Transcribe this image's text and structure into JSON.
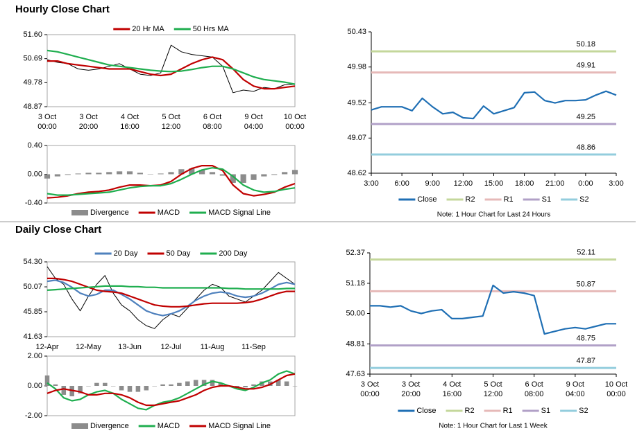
{
  "sections": [
    "Hourly Close Chart",
    "Daily Close Chart"
  ],
  "chart_data": [
    {
      "type": "line",
      "frame": true,
      "legend": "top",
      "categories": [
        [
          "3 Oct",
          "00:00"
        ],
        null,
        null,
        null,
        [
          "3 Oct",
          "20:00"
        ],
        null,
        null,
        null,
        [
          "4 Oct",
          "16:00"
        ],
        null,
        null,
        null,
        [
          "5 Oct",
          "12:00"
        ],
        null,
        null,
        null,
        [
          "6 Oct",
          "08:00"
        ],
        null,
        null,
        null,
        [
          "9 Oct",
          "04:00"
        ],
        null,
        null,
        null,
        [
          "10 Oct",
          "00:00"
        ]
      ],
      "ylim": [
        48.87,
        51.6
      ],
      "yticks": [
        48.87,
        49.78,
        50.69,
        {
          "value": 51.6,
          "label": "51.60"
        }
      ],
      "series": [
        {
          "color": "#000000",
          "values": [
            50.65,
            50.55,
            50.5,
            50.3,
            50.25,
            50.3,
            50.4,
            50.5,
            50.3,
            50.1,
            50.05,
            50.15,
            51.2,
            50.95,
            50.85,
            50.8,
            50.75,
            50.4,
            49.4,
            49.5,
            49.45,
            49.6,
            49.55,
            49.7,
            49.72
          ]
        },
        {
          "name": "20 Hr MA",
          "color": "#c00000",
          "values": [
            50.6,
            50.6,
            50.5,
            50.45,
            50.4,
            50.35,
            50.3,
            50.3,
            50.3,
            50.2,
            50.1,
            50.05,
            50.1,
            50.3,
            50.5,
            50.65,
            50.75,
            50.65,
            50.3,
            49.9,
            49.65,
            49.55,
            49.55,
            49.6,
            49.65
          ]
        },
        {
          "name": "50 Hrs MA",
          "color": "#1fae4f",
          "values": [
            51.0,
            50.95,
            50.85,
            50.75,
            50.65,
            50.55,
            50.45,
            50.4,
            50.35,
            50.3,
            50.25,
            50.22,
            50.2,
            50.22,
            50.28,
            50.35,
            50.4,
            50.4,
            50.3,
            50.15,
            50.0,
            49.9,
            49.85,
            49.8,
            49.72
          ]
        }
      ]
    },
    {
      "type": "combo",
      "frame": true,
      "legend": "bottom",
      "ylim": [
        -0.4,
        0.4
      ],
      "yticks": [
        {
          "value": -0.4,
          "label": "-0.40"
        },
        {
          "value": 0,
          "label": "0.00"
        },
        {
          "value": 0.4,
          "label": "0.40"
        }
      ],
      "series": [
        {
          "name": "Divergence",
          "mark": "bar",
          "color": "#8c8c8c",
          "values": [
            -0.06,
            -0.03,
            -0.01,
            0.01,
            0.02,
            0.02,
            0.03,
            0.04,
            0.04,
            0.02,
            0,
            0.01,
            0.03,
            0.07,
            0.08,
            0.06,
            0.03,
            -0.02,
            -0.12,
            -0.12,
            -0.08,
            -0.03,
            -0.01,
            0.03,
            0.06
          ]
        },
        {
          "name": "MACD",
          "mark": "line",
          "color": "#c00000",
          "values": [
            -0.33,
            -0.32,
            -0.3,
            -0.27,
            -0.25,
            -0.24,
            -0.22,
            -0.18,
            -0.15,
            -0.15,
            -0.16,
            -0.15,
            -0.1,
            0.0,
            0.08,
            0.12,
            0.12,
            0.05,
            -0.15,
            -0.27,
            -0.3,
            -0.28,
            -0.25,
            -0.18,
            -0.13
          ]
        },
        {
          "name": "MACD Signal Line",
          "mark": "line",
          "color": "#1fae4f",
          "values": [
            -0.27,
            -0.29,
            -0.29,
            -0.28,
            -0.27,
            -0.26,
            -0.25,
            -0.22,
            -0.19,
            -0.17,
            -0.16,
            -0.16,
            -0.13,
            -0.07,
            0.0,
            0.06,
            0.09,
            0.07,
            -0.03,
            -0.15,
            -0.22,
            -0.25,
            -0.24,
            -0.21,
            -0.19
          ]
        }
      ]
    },
    {
      "type": "line",
      "frame": false,
      "legend": "bottom",
      "note": "Note: 1 Hour Chart for Last 24 Hours",
      "categories": [
        "3:00",
        null,
        null,
        "6:00",
        null,
        null,
        "9:00",
        null,
        null,
        "12:00",
        null,
        null,
        "15:00",
        null,
        null,
        "18:00",
        null,
        null,
        "21:00",
        null,
        null,
        "0:00",
        null,
        null,
        "3:00"
      ],
      "ylim": [
        48.62,
        50.43
      ],
      "yticks": [
        48.62,
        49.07,
        49.52,
        49.98,
        50.43
      ],
      "series": [
        {
          "name": "Close",
          "color": "#1f6fb4",
          "values": [
            49.43,
            49.47,
            49.47,
            49.47,
            49.42,
            49.58,
            49.47,
            49.38,
            49.4,
            49.33,
            49.32,
            49.48,
            49.38,
            49.42,
            49.46,
            49.65,
            49.66,
            49.55,
            49.52,
            49.55,
            49.55,
            49.56,
            49.62,
            49.67,
            49.62
          ]
        }
      ],
      "levels": [
        {
          "name": "R2",
          "color": "#c4d79b",
          "value": 50.18
        },
        {
          "name": "R1",
          "color": "#e6b9b8",
          "value": 49.91
        },
        {
          "name": "S1",
          "color": "#b1a0c7",
          "value": 49.25
        },
        {
          "name": "S2",
          "color": "#93cddd",
          "value": 48.86
        }
      ]
    },
    {
      "type": "line",
      "frame": true,
      "legend": "top",
      "categories": [
        "12-Apr",
        null,
        null,
        null,
        null,
        "12-May",
        null,
        null,
        null,
        null,
        "13-Jun",
        null,
        null,
        null,
        null,
        "12-Jul",
        null,
        null,
        null,
        null,
        "11-Aug",
        null,
        null,
        null,
        null,
        "11-Sep",
        null,
        null,
        null,
        null,
        null
      ],
      "ylim": [
        41.63,
        54.3
      ],
      "yticks": [
        41.63,
        45.85,
        50.07,
        {
          "value": 54.3,
          "label": "54.30"
        }
      ],
      "series": [
        {
          "color": "#000000",
          "values": [
            53.5,
            51.5,
            50.5,
            48,
            46,
            48.5,
            50.5,
            52,
            49,
            47,
            46,
            44.5,
            43.5,
            43,
            44.5,
            45.5,
            45,
            46.5,
            48,
            49.5,
            50.5,
            50,
            48.5,
            48,
            47.5,
            48.5,
            49.5,
            51,
            52.5,
            51.5,
            50.5
          ]
        },
        {
          "name": "20 Day",
          "color": "#4f81bd",
          "values": [
            51,
            51.2,
            50.8,
            50,
            49,
            48.5,
            48.8,
            49.5,
            49.5,
            48.8,
            48,
            47,
            46,
            45.5,
            45.2,
            45.5,
            46,
            46.8,
            47.8,
            48.5,
            49,
            49.2,
            49,
            48.5,
            48.3,
            48.5,
            49,
            49.7,
            50.5,
            50.8,
            50.5
          ]
        },
        {
          "name": "50 Day",
          "color": "#c00000",
          "values": [
            51.5,
            51.5,
            51.3,
            51,
            50.5,
            50,
            49.5,
            49.3,
            49.2,
            49,
            48.5,
            48,
            47.5,
            47,
            46.8,
            46.7,
            46.7,
            46.8,
            47,
            47.2,
            47.3,
            47.3,
            47.3,
            47.3,
            47.4,
            47.6,
            48,
            48.5,
            49,
            49.3,
            49.3
          ]
        },
        {
          "name": "200 Day",
          "color": "#1fae4f",
          "values": [
            49.5,
            49.6,
            49.7,
            49.8,
            49.9,
            50,
            50.1,
            50.2,
            50.2,
            50.2,
            50.1,
            50.1,
            50,
            50,
            49.9,
            49.9,
            49.9,
            49.9,
            49.9,
            49.9,
            49.9,
            49.9,
            49.8,
            49.8,
            49.7,
            49.7,
            49.7,
            49.7,
            49.7,
            49.8,
            49.8
          ]
        }
      ]
    },
    {
      "type": "combo",
      "frame": true,
      "legend": "bottom",
      "ylim": [
        -2,
        2
      ],
      "yticks": [
        {
          "value": -2,
          "label": "-2.00"
        },
        {
          "value": 0,
          "label": "0.00"
        },
        {
          "value": 2,
          "label": "2.00"
        }
      ],
      "series": [
        {
          "name": "Divergence",
          "mark": "bar",
          "color": "#8c8c8c",
          "values": [
            0.7,
            0.1,
            -0.6,
            -0.7,
            -0.5,
            0,
            0.2,
            0.2,
            0,
            -0.3,
            -0.4,
            -0.4,
            -0.3,
            0,
            0.1,
            0.1,
            0.2,
            0.3,
            0.4,
            0.4,
            0.4,
            0.2,
            0,
            -0.1,
            -0.1,
            0.1,
            0.3,
            0.3,
            0.4,
            0.3,
            0
          ]
        },
        {
          "name": "MACD",
          "mark": "line",
          "color": "#1fae4f",
          "values": [
            0.2,
            -0.2,
            -0.8,
            -1.0,
            -0.9,
            -0.6,
            -0.4,
            -0.3,
            -0.5,
            -0.9,
            -1.2,
            -1.5,
            -1.6,
            -1.3,
            -1.1,
            -1.0,
            -0.8,
            -0.5,
            -0.2,
            0.1,
            0.3,
            0.2,
            0.0,
            -0.2,
            -0.3,
            -0.1,
            0.2,
            0.4,
            0.8,
            1.0,
            0.8
          ]
        },
        {
          "name": "MACD Signal Line",
          "mark": "line",
          "color": "#c00000",
          "values": [
            -0.5,
            -0.3,
            -0.2,
            -0.3,
            -0.4,
            -0.6,
            -0.6,
            -0.5,
            -0.5,
            -0.6,
            -0.8,
            -1.1,
            -1.3,
            -1.3,
            -1.2,
            -1.1,
            -1.0,
            -0.8,
            -0.6,
            -0.3,
            -0.1,
            0.0,
            0.0,
            -0.1,
            -0.2,
            -0.2,
            -0.1,
            0.1,
            0.4,
            0.7,
            0.8
          ]
        }
      ]
    },
    {
      "type": "line",
      "frame": false,
      "legend": "bottom",
      "note": "Note: 1 Hour Chart for Last 1 Week",
      "categories": [
        [
          "3 Oct",
          "00:00"
        ],
        null,
        null,
        null,
        [
          "3 Oct",
          "20:00"
        ],
        null,
        null,
        null,
        [
          "4 Oct",
          "16:00"
        ],
        null,
        null,
        null,
        [
          "5 Oct",
          "12:00"
        ],
        null,
        null,
        null,
        [
          "6 Oct",
          "08:00"
        ],
        null,
        null,
        null,
        [
          "9 Oct",
          "04:00"
        ],
        null,
        null,
        null,
        [
          "10 Oct",
          "00:00"
        ]
      ],
      "ylim": [
        47.63,
        52.37
      ],
      "yticks": [
        47.63,
        48.81,
        {
          "value": 50,
          "label": "50.00"
        },
        51.18,
        52.37
      ],
      "series": [
        {
          "name": "Close",
          "color": "#1f6fb4",
          "values": [
            50.3,
            50.3,
            50.25,
            50.3,
            50.1,
            50.0,
            50.1,
            50.15,
            49.8,
            49.8,
            49.85,
            49.9,
            51.1,
            50.8,
            50.85,
            50.8,
            50.7,
            49.2,
            49.3,
            49.4,
            49.45,
            49.4,
            49.5,
            49.6,
            49.6
          ]
        }
      ],
      "levels": [
        {
          "name": "R2",
          "color": "#c4d79b",
          "value": 52.11
        },
        {
          "name": "R1",
          "color": "#e6b9b8",
          "value": 50.87
        },
        {
          "name": "S1",
          "color": "#b1a0c7",
          "value": 48.75
        },
        {
          "name": "S2",
          "color": "#93cddd",
          "value": 47.87
        }
      ]
    }
  ]
}
